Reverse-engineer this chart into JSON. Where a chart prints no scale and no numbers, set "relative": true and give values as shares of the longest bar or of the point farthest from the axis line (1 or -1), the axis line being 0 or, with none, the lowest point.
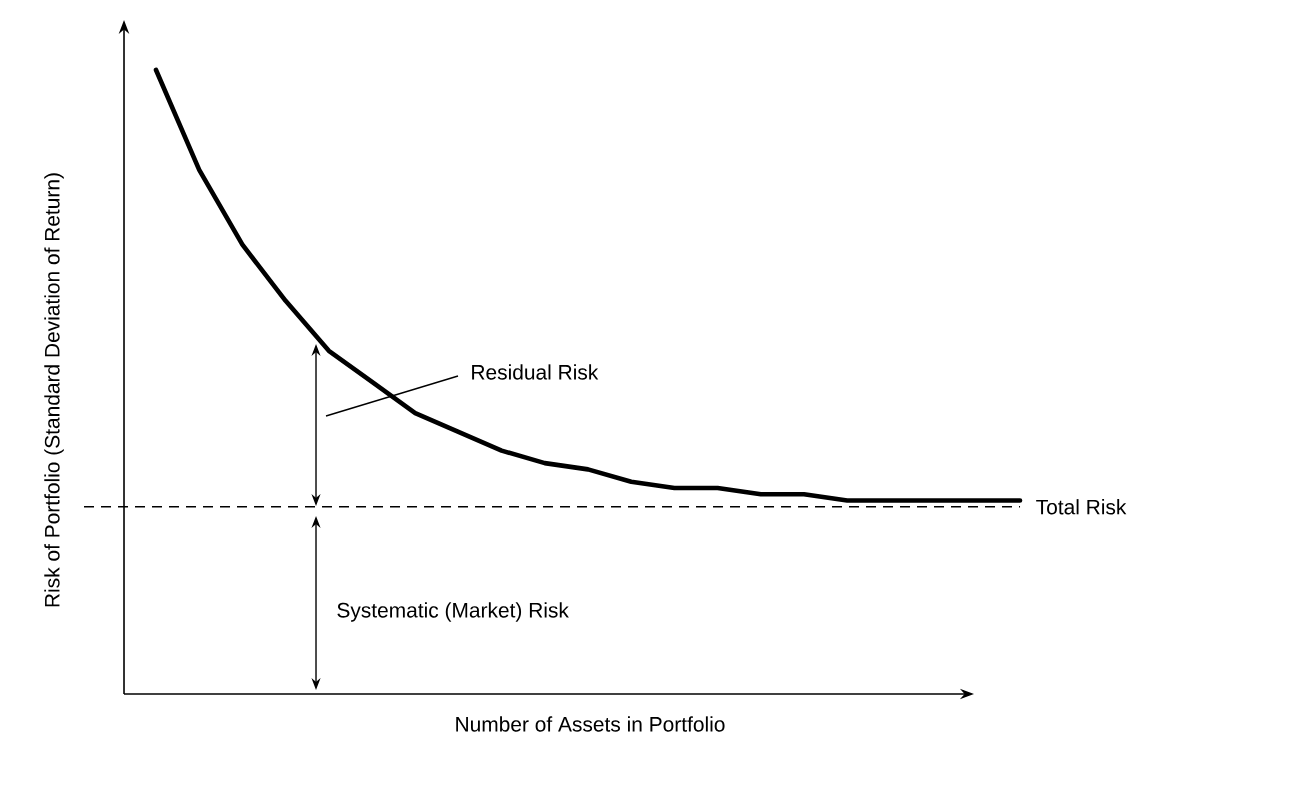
{
  "chart_data": {
    "type": "line",
    "relative": true,
    "marker": "none",
    "line_style": "solid",
    "color": "#000000",
    "xlabel": "Number of Assets in Portfolio",
    "ylabel": "Risk of Portfolio (Standard Deviation of Return)",
    "categories": [
      null,
      null,
      null,
      null,
      null,
      null,
      null,
      null,
      null,
      null,
      null,
      null,
      null,
      null,
      null,
      null,
      null,
      null,
      null,
      null,
      null
    ],
    "values": [
      1.0,
      0.84,
      0.72,
      0.63,
      0.55,
      0.5,
      0.45,
      0.42,
      0.39,
      0.37,
      0.36,
      0.34,
      0.33,
      0.33,
      0.32,
      0.32,
      0.31,
      0.31,
      0.31,
      0.31,
      0.31
    ],
    "ref_lines": [
      {
        "axis": "y",
        "value": 0.3,
        "label": "Total Risk",
        "line_style": "dashed"
      }
    ],
    "annotations": [
      "Residual Risk",
      "Systematic (Market) Risk"
    ]
  }
}
